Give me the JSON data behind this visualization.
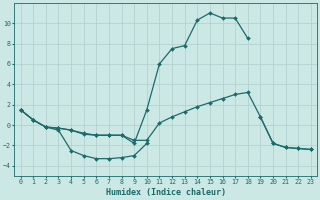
{
  "xlabel": "Humidex (Indice chaleur)",
  "background_color": "#cce8e5",
  "grid_color": "#aecfcc",
  "line_color": "#1a6b6b",
  "xlim": [
    -0.5,
    23.5
  ],
  "ylim": [
    -5,
    12
  ],
  "yticks": [
    -4,
    -2,
    0,
    2,
    4,
    6,
    8,
    10
  ],
  "xticks": [
    0,
    1,
    2,
    3,
    4,
    5,
    6,
    7,
    8,
    9,
    10,
    11,
    12,
    13,
    14,
    15,
    16,
    17,
    18,
    19,
    20,
    21,
    22,
    23
  ],
  "line1_x": [
    0,
    1,
    2,
    3,
    4,
    5,
    6,
    7,
    8,
    9,
    10
  ],
  "line1_y": [
    1.5,
    0.5,
    -0.2,
    -0.5,
    -2.5,
    -3.0,
    -3.3,
    -3.3,
    -3.2,
    -3.0,
    -1.8
  ],
  "line2_x": [
    0,
    1,
    2,
    3,
    4,
    5,
    6,
    7,
    8,
    9,
    10,
    11,
    12,
    13,
    14,
    15,
    16,
    17,
    18
  ],
  "line2_y": [
    1.5,
    0.5,
    -0.2,
    -0.3,
    -0.5,
    -0.8,
    -1.0,
    -1.0,
    -1.0,
    -1.8,
    1.5,
    6.0,
    7.5,
    7.8,
    10.3,
    11.0,
    10.5,
    10.5,
    8.5
  ],
  "line3_x": [
    0,
    1,
    2,
    3,
    4,
    5,
    6,
    7,
    8,
    9,
    10,
    11,
    12,
    13,
    14,
    15,
    16,
    17,
    18,
    19,
    20,
    21,
    22,
    23
  ],
  "line3_y": [
    1.5,
    0.5,
    -0.2,
    -0.3,
    -0.5,
    -0.9,
    -1.0,
    -1.0,
    -1.0,
    -1.5,
    -1.5,
    0.2,
    0.8,
    1.3,
    1.8,
    2.2,
    2.6,
    3.0,
    3.2,
    0.8,
    -1.8,
    -2.2,
    -2.3,
    -2.4
  ],
  "line4_x": [
    19,
    20,
    21,
    22,
    23
  ],
  "line4_y": [
    0.8,
    -1.8,
    -2.2,
    -2.3,
    -2.4
  ]
}
